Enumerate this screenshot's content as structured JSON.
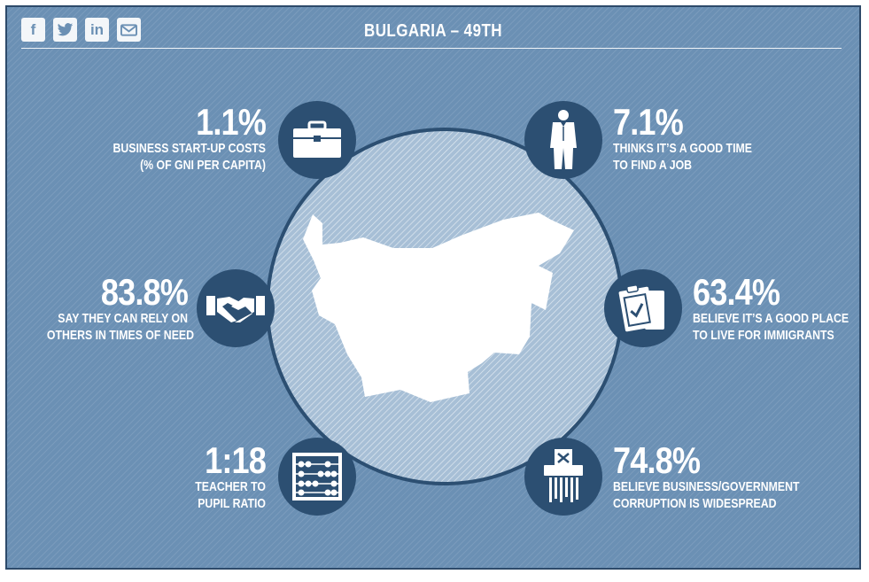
{
  "share": {
    "facebook": "f",
    "twitter": "t",
    "linkedin": "in",
    "email": "email-icon"
  },
  "title": "BULGARIA – 49TH",
  "stats": {
    "startup": {
      "value": "1.1%",
      "line1": "BUSINESS START-UP COSTS",
      "line2": "(% OF GNI PER CAPITA)",
      "icon": "briefcase-icon"
    },
    "job": {
      "value": "7.1%",
      "line1": "THINKS IT’S A GOOD TIME",
      "line2": "TO FIND A JOB",
      "icon": "businessman-icon"
    },
    "rely": {
      "value": "83.8%",
      "line1": "SAY THEY CAN RELY ON",
      "line2": "OTHERS IN TIMES OF NEED",
      "icon": "handshake-icon"
    },
    "immigrants": {
      "value": "63.4%",
      "line1": "BELIEVE IT’S A GOOD PLACE",
      "line2": "TO LIVE FOR IMMIGRANTS",
      "icon": "clipboard-icon"
    },
    "teacher": {
      "value": "1:18",
      "line1": "TEACHER TO",
      "line2": "PUPIL RATIO",
      "icon": "abacus-icon"
    },
    "corruption": {
      "value": "74.8%",
      "line1": "BELIEVE BUSINESS/GOVERNMENT",
      "line2": "CORRUPTION IS WIDESPREAD",
      "icon": "shredder-icon"
    }
  },
  "colors": {
    "background": "#6b90b4",
    "icon_circle": "#2c4f72",
    "text": "#ffffff",
    "map": "#ffffff"
  }
}
